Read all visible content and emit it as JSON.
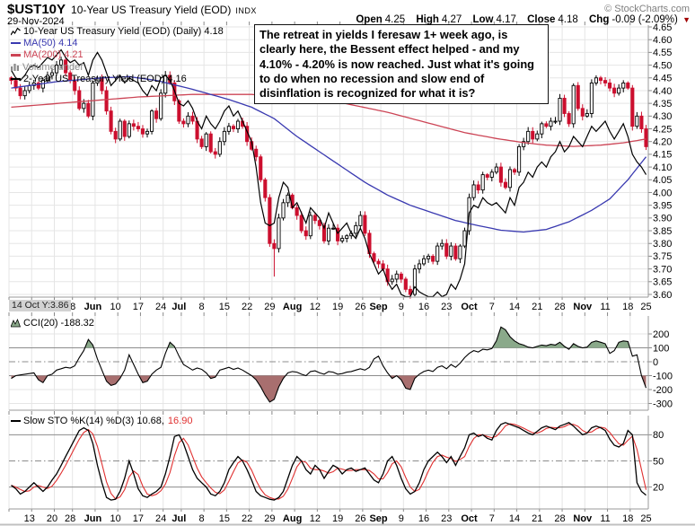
{
  "header": {
    "symbol": "$UST10Y",
    "title": "10-Year US Treasury Yield (EOD)",
    "exchange": "INDX",
    "date": "29-Nov-2024",
    "copyright": "© StockCharts.com",
    "quote": {
      "open_label": "Open",
      "open": "4.25",
      "high_label": "High",
      "high": "4.27",
      "low_label": "Low",
      "low": "4.17",
      "close_label": "Close",
      "close": "4.18",
      "chg_label": "Chg",
      "chg": "-0.09 (-2.09%)",
      "direction_arrow": "▼"
    }
  },
  "annotation": {
    "text": "The retreat in yields I feresaw 1+ week ago, is clearly here, the Bessent effect helped - and my 4.10% - 4.20% is now reached. Just what it's going to do when no recession and slow end of disinflation is recognized for what it is?"
  },
  "main_legend": {
    "series": "10-Year US Treasury Yield (EOD) (Daily) 4.18",
    "ma50": "MA(50) 4.14",
    "ma200": "MA(200) 4.21",
    "volume": "Volume undef",
    "overlay": "2-Year US Treasury Yield (EOD) 4.16"
  },
  "cci_legend": {
    "label": "CCI(20) -188.32"
  },
  "sto_legend": {
    "label_k": "Slow STO %K(14) %D(3) 10.68,",
    "label_d": "16.90"
  },
  "xaxis_tooltip": "14 Oct Y:3.86",
  "colors": {
    "candle_down": "#cc0f2e",
    "candle_up_fill": "#ffffff",
    "candle_up_stroke": "#000000",
    "ma50": "#3939b0",
    "ma200": "#cc4455",
    "two_year_line": "#000000",
    "cci_line": "#000000",
    "cci_fill_pos": "#8aa98a",
    "cci_fill_neg": "#a86f6f",
    "sto_k": "#000000",
    "sto_d": "#e03030",
    "grid_light": "#e5e5e5",
    "grid_ref": "#8c8c8c",
    "border": "#9a9a9a",
    "tick": "#888888",
    "volume_text": "#8a8a8a",
    "copyright_text": "#808080",
    "tooltip_bg": "#d2d2d2",
    "arrow_red": "#a00000"
  },
  "chart_data": [
    {
      "type": "candlestick",
      "title": "10-Year US Treasury Yield (EOD) (Daily)",
      "last_value": 4.18,
      "ylim": [
        3.6,
        4.65
      ],
      "y_ticks": [
        "4.65",
        "4.60",
        "4.55",
        "4.50",
        "4.45",
        "4.40",
        "4.35",
        "4.30",
        "4.25",
        "4.20",
        "4.15",
        "4.10",
        "4.05",
        "4.00",
        "3.95",
        "3.90",
        "3.85",
        "3.80",
        "3.75",
        "3.70",
        "3.65",
        "3.60"
      ],
      "x_weeks": [
        [
          "13",
          0,
          5
        ],
        [
          "20",
          5,
          5
        ],
        [
          "28",
          10,
          4
        ],
        [
          "Jun",
          14,
          5
        ],
        [
          "10",
          19,
          5
        ],
        [
          "17",
          24,
          5
        ],
        [
          "24",
          29,
          5
        ],
        [
          "Jul",
          34,
          4
        ],
        [
          "8",
          38,
          5
        ],
        [
          "15",
          43,
          5
        ],
        [
          "22",
          48,
          5
        ],
        [
          "29",
          53,
          5
        ],
        [
          "Aug",
          58,
          5
        ],
        [
          "12",
          63,
          5
        ],
        [
          "19",
          68,
          5
        ],
        [
          "26",
          73,
          5
        ],
        [
          "Sep",
          78,
          4
        ],
        [
          "9",
          82,
          5
        ],
        [
          "16",
          87,
          5
        ],
        [
          "23",
          92,
          5
        ],
        [
          "Oct",
          97,
          5
        ],
        [
          "7",
          102,
          5
        ],
        [
          "14",
          107,
          5
        ],
        [
          "21",
          112,
          5
        ],
        [
          "28",
          117,
          5
        ],
        [
          "Nov",
          122,
          5
        ],
        [
          "11",
          127,
          5
        ],
        [
          "18",
          132,
          5
        ],
        [
          "25",
          137,
          4
        ]
      ],
      "close": [
        4.44,
        4.41,
        4.38,
        4.4,
        4.42,
        4.43,
        4.41,
        4.44,
        4.46,
        4.47,
        4.5,
        4.52,
        4.47,
        4.44,
        4.4,
        4.33,
        4.35,
        4.3,
        4.43,
        4.45,
        4.4,
        4.32,
        4.24,
        4.21,
        4.28,
        4.22,
        4.27,
        4.26,
        4.25,
        4.23,
        4.24,
        4.32,
        4.29,
        4.39,
        4.46,
        4.43,
        4.36,
        4.28,
        4.27,
        4.3,
        4.28,
        4.21,
        4.18,
        4.23,
        4.16,
        4.15,
        4.2,
        4.24,
        4.26,
        4.25,
        4.28,
        4.26,
        4.2,
        4.17,
        4.14,
        4.05,
        3.98,
        3.8,
        3.78,
        3.9,
        3.96,
        3.99,
        3.94,
        3.91,
        3.85,
        3.83,
        3.91,
        3.89,
        3.87,
        3.81,
        3.86,
        3.86,
        3.81,
        3.82,
        3.83,
        3.84,
        3.87,
        3.91,
        3.84,
        3.76,
        3.73,
        3.72,
        3.7,
        3.65,
        3.66,
        3.68,
        3.66,
        3.62,
        3.6,
        3.7,
        3.72,
        3.74,
        3.75,
        3.73,
        3.79,
        3.8,
        3.75,
        3.79,
        3.74,
        3.79,
        3.85,
        3.98,
        4.03,
        4.01,
        4.07,
        4.06,
        4.08,
        4.1,
        4.04,
        4.02,
        4.09,
        4.08,
        4.18,
        4.2,
        4.24,
        4.21,
        4.23,
        4.27,
        4.26,
        4.28,
        4.28,
        4.37,
        4.31,
        4.27,
        4.42,
        4.33,
        4.3,
        4.31,
        4.43,
        4.45,
        4.44,
        4.43,
        4.41,
        4.39,
        4.41,
        4.43,
        4.41,
        4.26,
        4.3,
        4.25,
        4.18
      ],
      "wick_low_overrides": {
        "58": 3.67
      },
      "overlays": {
        "ma50_keypoints": [
          [
            0,
            4.41
          ],
          [
            10,
            4.435
          ],
          [
            20,
            4.45
          ],
          [
            26,
            4.455
          ],
          [
            32,
            4.44
          ],
          [
            40,
            4.405
          ],
          [
            48,
            4.365
          ],
          [
            53,
            4.335
          ],
          [
            58,
            4.29
          ],
          [
            63,
            4.22
          ],
          [
            68,
            4.16
          ],
          [
            73,
            4.1
          ],
          [
            78,
            4.04
          ],
          [
            83,
            3.99
          ],
          [
            88,
            3.95
          ],
          [
            93,
            3.92
          ],
          [
            98,
            3.89
          ],
          [
            103,
            3.87
          ],
          [
            108,
            3.852
          ],
          [
            113,
            3.845
          ],
          [
            118,
            3.855
          ],
          [
            123,
            3.885
          ],
          [
            128,
            3.93
          ],
          [
            132,
            3.975
          ],
          [
            136,
            4.05
          ],
          [
            140,
            4.14
          ]
        ],
        "ma200_keypoints": [
          [
            0,
            4.335
          ],
          [
            14,
            4.355
          ],
          [
            28,
            4.375
          ],
          [
            40,
            4.385
          ],
          [
            53,
            4.385
          ],
          [
            63,
            4.372
          ],
          [
            73,
            4.352
          ],
          [
            83,
            4.315
          ],
          [
            93,
            4.268
          ],
          [
            100,
            4.235
          ],
          [
            107,
            4.212
          ],
          [
            113,
            4.196
          ],
          [
            118,
            4.186
          ],
          [
            124,
            4.181
          ],
          [
            130,
            4.186
          ],
          [
            135,
            4.195
          ],
          [
            140,
            4.21
          ]
        ],
        "two_year": [
          4.48,
          4.45,
          4.44,
          4.46,
          4.49,
          4.5,
          4.49,
          4.51,
          4.53,
          4.52,
          4.54,
          4.56,
          4.53,
          4.51,
          4.52,
          4.5,
          4.51,
          4.46,
          4.52,
          4.55,
          4.52,
          4.47,
          4.42,
          4.44,
          4.46,
          4.43,
          4.45,
          4.44,
          4.43,
          4.4,
          4.38,
          4.42,
          4.4,
          4.45,
          4.46,
          4.44,
          4.4,
          4.35,
          4.34,
          4.36,
          4.33,
          4.28,
          4.25,
          4.3,
          4.27,
          4.25,
          4.28,
          4.32,
          4.34,
          4.3,
          4.32,
          4.28,
          4.24,
          4.2,
          4.1,
          3.96,
          3.88,
          3.87,
          3.88,
          3.98,
          4.04,
          4.02,
          3.94,
          3.96,
          3.92,
          3.88,
          3.94,
          3.92,
          3.9,
          3.86,
          3.92,
          3.88,
          3.84,
          3.86,
          3.88,
          3.84,
          3.82,
          3.86,
          3.82,
          3.76,
          3.72,
          3.68,
          3.7,
          3.65,
          3.62,
          3.64,
          3.6,
          3.59,
          3.57,
          3.63,
          3.61,
          3.6,
          3.58,
          3.56,
          3.61,
          3.58,
          3.6,
          3.64,
          3.62,
          3.66,
          3.72,
          3.92,
          3.95,
          3.94,
          3.98,
          3.96,
          3.95,
          3.96,
          3.94,
          3.92,
          3.98,
          3.95,
          4.02,
          4.04,
          4.08,
          4.06,
          4.1,
          4.12,
          4.1,
          4.14,
          4.16,
          4.2,
          4.16,
          4.18,
          4.22,
          4.2,
          4.18,
          4.22,
          4.26,
          4.24,
          4.26,
          4.28,
          4.24,
          4.21,
          4.24,
          4.27,
          4.22,
          4.15,
          4.12,
          4.1,
          4.07
        ]
      }
    },
    {
      "type": "area",
      "title": "CCI(20)",
      "last_value": -188.32,
      "levels": [
        100,
        0,
        -100
      ],
      "y_ticks": [
        "200",
        "100",
        "0",
        "-100",
        "-200",
        "-300"
      ],
      "y_tick_values": [
        200,
        100,
        0,
        -100,
        -200,
        -300
      ],
      "values": [
        -120,
        -100,
        -95,
        -90,
        -85,
        -80,
        -130,
        -150,
        -100,
        -90,
        -60,
        -50,
        -40,
        -45,
        -30,
        30,
        80,
        160,
        120,
        20,
        -60,
        -140,
        -170,
        -160,
        -120,
        -60,
        50,
        -20,
        -90,
        -150,
        -140,
        -90,
        -60,
        -40,
        60,
        140,
        110,
        40,
        -20,
        -40,
        -60,
        -45,
        -55,
        -80,
        -120,
        -110,
        -60,
        -50,
        -40,
        -55,
        -45,
        -60,
        -80,
        -100,
        -130,
        -180,
        -240,
        -290,
        -270,
        -180,
        -120,
        -80,
        -70,
        -75,
        -90,
        -100,
        -70,
        -65,
        -80,
        -90,
        -70,
        -75,
        -90,
        -85,
        -75,
        -70,
        -60,
        -50,
        -60,
        -40,
        20,
        40,
        -30,
        -80,
        -120,
        -100,
        -130,
        -190,
        -200,
        -120,
        -90,
        -70,
        -60,
        -70,
        -40,
        -30,
        -50,
        -20,
        -40,
        -10,
        30,
        60,
        80,
        70,
        90,
        85,
        95,
        150,
        250,
        230,
        180,
        150,
        130,
        120,
        105,
        100,
        110,
        120,
        115,
        125,
        120,
        140,
        110,
        90,
        130,
        110,
        100,
        105,
        140,
        150,
        140,
        130,
        60,
        80,
        140,
        150,
        145,
        40,
        50,
        -100,
        -188.32
      ]
    },
    {
      "type": "line",
      "title": "Slow STO %K(14) %D(3)",
      "k_last": 10.68,
      "d_last": 16.9,
      "levels": [
        80,
        50,
        20
      ],
      "y_ticks": [
        "80",
        "50",
        "20"
      ],
      "y_tick_values": [
        80,
        50,
        20
      ],
      "k": [
        22,
        18,
        12,
        15,
        20,
        25,
        20,
        15,
        20,
        28,
        35,
        45,
        55,
        65,
        75,
        85,
        88,
        85,
        70,
        45,
        25,
        8,
        5,
        6,
        15,
        30,
        50,
        35,
        18,
        10,
        8,
        12,
        15,
        20,
        35,
        55,
        78,
        80,
        70,
        55,
        40,
        30,
        25,
        20,
        12,
        10,
        15,
        25,
        40,
        48,
        55,
        50,
        40,
        28,
        15,
        10,
        8,
        6,
        5,
        8,
        15,
        30,
        45,
        55,
        50,
        40,
        35,
        45,
        40,
        30,
        38,
        45,
        42,
        35,
        40,
        42,
        38,
        40,
        42,
        35,
        28,
        25,
        35,
        50,
        55,
        45,
        30,
        18,
        12,
        15,
        25,
        40,
        50,
        55,
        60,
        55,
        48,
        55,
        45,
        55,
        65,
        80,
        82,
        78,
        80,
        76,
        74,
        85,
        92,
        94,
        92,
        90,
        88,
        85,
        82,
        80,
        84,
        88,
        90,
        88,
        86,
        90,
        92,
        94,
        90,
        85,
        80,
        82,
        88,
        90,
        88,
        85,
        75,
        68,
        66,
        70,
        85,
        80,
        25,
        15,
        10.68
      ]
    }
  ]
}
